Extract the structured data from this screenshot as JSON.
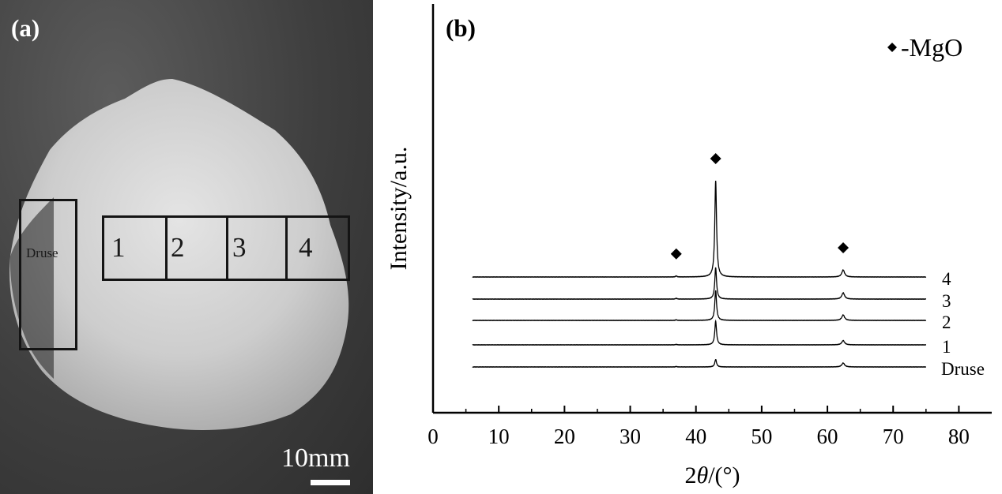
{
  "panel_a": {
    "label": "(a)",
    "regions": [
      {
        "id": "druse",
        "label": "Druse"
      },
      {
        "id": "1",
        "label": "1"
      },
      {
        "id": "2",
        "label": "2"
      },
      {
        "id": "3",
        "label": "3"
      },
      {
        "id": "4",
        "label": "4"
      }
    ],
    "scale_text": "10mm",
    "colors": {
      "background": "#3f3f3f",
      "specimen": "#cfcfcf",
      "box": "#141414"
    }
  },
  "panel_b": {
    "label": "(b)"
  },
  "chart_data": {
    "type": "line",
    "title": "",
    "xlabel": "2θ/(°)",
    "xlabel_parts": {
      "pre": "2",
      "var": "θ",
      "post": "/(°)"
    },
    "ylabel": "Intensity/a.u.",
    "xlim": [
      0,
      85
    ],
    "xticks": [
      0,
      10,
      20,
      30,
      40,
      50,
      60,
      70,
      80
    ],
    "y_ticks_shown": false,
    "grid": false,
    "legend": {
      "marker": "diamond",
      "text": "-MgO",
      "placement": "top-right"
    },
    "x_range_measured": [
      6,
      75
    ],
    "peaks": [
      {
        "position": 37.0,
        "marker": true
      },
      {
        "position": 43.0,
        "marker": true
      },
      {
        "position": 62.4,
        "marker": true
      }
    ],
    "series": [
      {
        "name": "Druse",
        "offset": 0,
        "peak_heights": [
          0.6,
          9.5,
          5.0
        ]
      },
      {
        "name": "1",
        "offset": 28,
        "peak_heights": [
          0.6,
          30,
          5.5
        ]
      },
      {
        "name": "2",
        "offset": 59,
        "peak_heights": [
          0.8,
          38,
          7.0
        ]
      },
      {
        "name": "3",
        "offset": 86,
        "peak_heights": [
          1.0,
          40,
          8.0
        ]
      },
      {
        "name": "4",
        "offset": 114,
        "peak_heights": [
          1.3,
          122,
          9.0
        ]
      }
    ],
    "colors": {
      "line": "#000000",
      "axis": "#000000"
    }
  }
}
